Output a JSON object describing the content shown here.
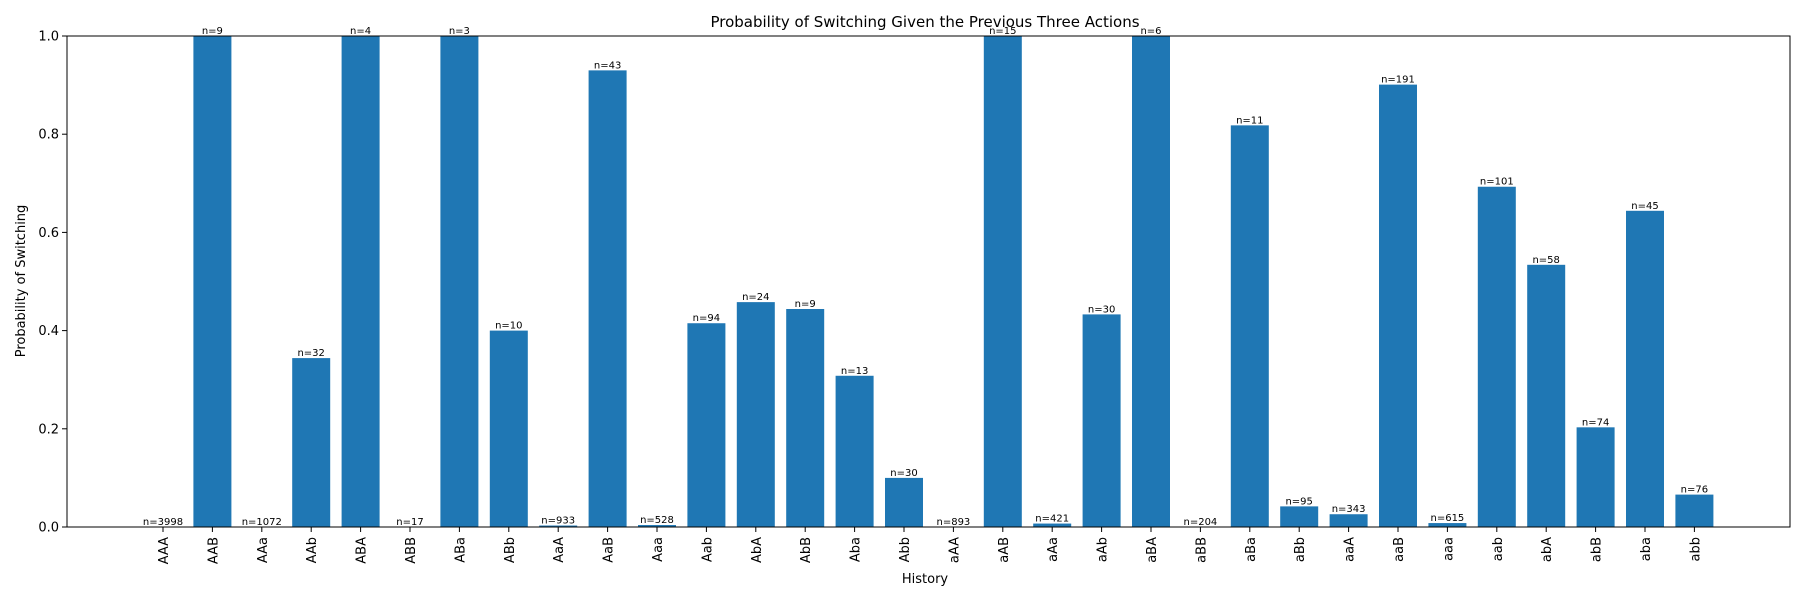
{
  "chart_data": {
    "type": "bar",
    "title": "Probability of Switching Given the Previous Three Actions",
    "xlabel": "History",
    "ylabel": "Probability of Switching",
    "ylim": [
      0,
      1.0
    ],
    "yticks": [
      "0.0",
      "0.2",
      "0.4",
      "0.6",
      "0.8",
      "1.0"
    ],
    "bar_color": "#1f77b4",
    "grid": false,
    "categories": [
      "AAA",
      "AAB",
      "AAa",
      "AAb",
      "ABA",
      "ABB",
      "ABa",
      "ABb",
      "AaA",
      "AaB",
      "Aaa",
      "Aab",
      "AbA",
      "AbB",
      "Aba",
      "Abb",
      "aAA",
      "aAB",
      "aAa",
      "aAb",
      "aBA",
      "aBB",
      "aBa",
      "aBb",
      "aaA",
      "aaB",
      "aaa",
      "aab",
      "abA",
      "abB",
      "aba",
      "abb"
    ],
    "values": [
      0.0,
      1.0,
      0.0,
      0.344,
      1.0,
      0.0,
      1.0,
      0.4,
      0.003,
      0.93,
      0.004,
      0.415,
      0.458,
      0.444,
      0.308,
      0.1,
      0.0,
      1.0,
      0.007,
      0.433,
      1.0,
      0.0,
      0.818,
      0.042,
      0.026,
      0.901,
      0.008,
      0.693,
      0.534,
      0.203,
      0.644,
      0.066
    ],
    "bar_labels": [
      "n=3998",
      "n=9",
      "n=1072",
      "n=32",
      "n=4",
      "n=17",
      "n=3",
      "n=10",
      "n=933",
      "n=43",
      "n=528",
      "n=94",
      "n=24",
      "n=9",
      "n=13",
      "n=30",
      "n=893",
      "n=15",
      "n=421",
      "n=30",
      "n=6",
      "n=204",
      "n=11",
      "n=95",
      "n=343",
      "n=191",
      "n=615",
      "n=101",
      "n=58",
      "n=74",
      "n=45",
      "n=76"
    ]
  }
}
